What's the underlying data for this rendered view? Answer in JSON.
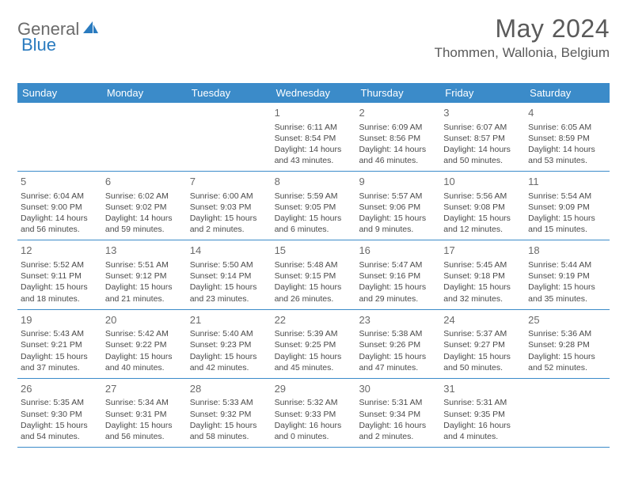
{
  "brand": {
    "part1": "General",
    "part2": "Blue"
  },
  "title": "May 2024",
  "location": "Thommen, Wallonia, Belgium",
  "colors": {
    "header_bg": "#3b8bc9",
    "header_text": "#ffffff",
    "row_border": "#3b8bc9",
    "body_text": "#4a4a4a",
    "title_text": "#5a5a5a",
    "logo_gray": "#6b6b6b",
    "logo_blue": "#2a7bbf",
    "background": "#ffffff"
  },
  "weekdays": [
    "Sunday",
    "Monday",
    "Tuesday",
    "Wednesday",
    "Thursday",
    "Friday",
    "Saturday"
  ],
  "weeks": [
    [
      {
        "n": "",
        "sr": "",
        "ss": "",
        "dl1": "",
        "dl2": ""
      },
      {
        "n": "",
        "sr": "",
        "ss": "",
        "dl1": "",
        "dl2": ""
      },
      {
        "n": "",
        "sr": "",
        "ss": "",
        "dl1": "",
        "dl2": ""
      },
      {
        "n": "1",
        "sr": "Sunrise: 6:11 AM",
        "ss": "Sunset: 8:54 PM",
        "dl1": "Daylight: 14 hours",
        "dl2": "and 43 minutes."
      },
      {
        "n": "2",
        "sr": "Sunrise: 6:09 AM",
        "ss": "Sunset: 8:56 PM",
        "dl1": "Daylight: 14 hours",
        "dl2": "and 46 minutes."
      },
      {
        "n": "3",
        "sr": "Sunrise: 6:07 AM",
        "ss": "Sunset: 8:57 PM",
        "dl1": "Daylight: 14 hours",
        "dl2": "and 50 minutes."
      },
      {
        "n": "4",
        "sr": "Sunrise: 6:05 AM",
        "ss": "Sunset: 8:59 PM",
        "dl1": "Daylight: 14 hours",
        "dl2": "and 53 minutes."
      }
    ],
    [
      {
        "n": "5",
        "sr": "Sunrise: 6:04 AM",
        "ss": "Sunset: 9:00 PM",
        "dl1": "Daylight: 14 hours",
        "dl2": "and 56 minutes."
      },
      {
        "n": "6",
        "sr": "Sunrise: 6:02 AM",
        "ss": "Sunset: 9:02 PM",
        "dl1": "Daylight: 14 hours",
        "dl2": "and 59 minutes."
      },
      {
        "n": "7",
        "sr": "Sunrise: 6:00 AM",
        "ss": "Sunset: 9:03 PM",
        "dl1": "Daylight: 15 hours",
        "dl2": "and 2 minutes."
      },
      {
        "n": "8",
        "sr": "Sunrise: 5:59 AM",
        "ss": "Sunset: 9:05 PM",
        "dl1": "Daylight: 15 hours",
        "dl2": "and 6 minutes."
      },
      {
        "n": "9",
        "sr": "Sunrise: 5:57 AM",
        "ss": "Sunset: 9:06 PM",
        "dl1": "Daylight: 15 hours",
        "dl2": "and 9 minutes."
      },
      {
        "n": "10",
        "sr": "Sunrise: 5:56 AM",
        "ss": "Sunset: 9:08 PM",
        "dl1": "Daylight: 15 hours",
        "dl2": "and 12 minutes."
      },
      {
        "n": "11",
        "sr": "Sunrise: 5:54 AM",
        "ss": "Sunset: 9:09 PM",
        "dl1": "Daylight: 15 hours",
        "dl2": "and 15 minutes."
      }
    ],
    [
      {
        "n": "12",
        "sr": "Sunrise: 5:52 AM",
        "ss": "Sunset: 9:11 PM",
        "dl1": "Daylight: 15 hours",
        "dl2": "and 18 minutes."
      },
      {
        "n": "13",
        "sr": "Sunrise: 5:51 AM",
        "ss": "Sunset: 9:12 PM",
        "dl1": "Daylight: 15 hours",
        "dl2": "and 21 minutes."
      },
      {
        "n": "14",
        "sr": "Sunrise: 5:50 AM",
        "ss": "Sunset: 9:14 PM",
        "dl1": "Daylight: 15 hours",
        "dl2": "and 23 minutes."
      },
      {
        "n": "15",
        "sr": "Sunrise: 5:48 AM",
        "ss": "Sunset: 9:15 PM",
        "dl1": "Daylight: 15 hours",
        "dl2": "and 26 minutes."
      },
      {
        "n": "16",
        "sr": "Sunrise: 5:47 AM",
        "ss": "Sunset: 9:16 PM",
        "dl1": "Daylight: 15 hours",
        "dl2": "and 29 minutes."
      },
      {
        "n": "17",
        "sr": "Sunrise: 5:45 AM",
        "ss": "Sunset: 9:18 PM",
        "dl1": "Daylight: 15 hours",
        "dl2": "and 32 minutes."
      },
      {
        "n": "18",
        "sr": "Sunrise: 5:44 AM",
        "ss": "Sunset: 9:19 PM",
        "dl1": "Daylight: 15 hours",
        "dl2": "and 35 minutes."
      }
    ],
    [
      {
        "n": "19",
        "sr": "Sunrise: 5:43 AM",
        "ss": "Sunset: 9:21 PM",
        "dl1": "Daylight: 15 hours",
        "dl2": "and 37 minutes."
      },
      {
        "n": "20",
        "sr": "Sunrise: 5:42 AM",
        "ss": "Sunset: 9:22 PM",
        "dl1": "Daylight: 15 hours",
        "dl2": "and 40 minutes."
      },
      {
        "n": "21",
        "sr": "Sunrise: 5:40 AM",
        "ss": "Sunset: 9:23 PM",
        "dl1": "Daylight: 15 hours",
        "dl2": "and 42 minutes."
      },
      {
        "n": "22",
        "sr": "Sunrise: 5:39 AM",
        "ss": "Sunset: 9:25 PM",
        "dl1": "Daylight: 15 hours",
        "dl2": "and 45 minutes."
      },
      {
        "n": "23",
        "sr": "Sunrise: 5:38 AM",
        "ss": "Sunset: 9:26 PM",
        "dl1": "Daylight: 15 hours",
        "dl2": "and 47 minutes."
      },
      {
        "n": "24",
        "sr": "Sunrise: 5:37 AM",
        "ss": "Sunset: 9:27 PM",
        "dl1": "Daylight: 15 hours",
        "dl2": "and 50 minutes."
      },
      {
        "n": "25",
        "sr": "Sunrise: 5:36 AM",
        "ss": "Sunset: 9:28 PM",
        "dl1": "Daylight: 15 hours",
        "dl2": "and 52 minutes."
      }
    ],
    [
      {
        "n": "26",
        "sr": "Sunrise: 5:35 AM",
        "ss": "Sunset: 9:30 PM",
        "dl1": "Daylight: 15 hours",
        "dl2": "and 54 minutes."
      },
      {
        "n": "27",
        "sr": "Sunrise: 5:34 AM",
        "ss": "Sunset: 9:31 PM",
        "dl1": "Daylight: 15 hours",
        "dl2": "and 56 minutes."
      },
      {
        "n": "28",
        "sr": "Sunrise: 5:33 AM",
        "ss": "Sunset: 9:32 PM",
        "dl1": "Daylight: 15 hours",
        "dl2": "and 58 minutes."
      },
      {
        "n": "29",
        "sr": "Sunrise: 5:32 AM",
        "ss": "Sunset: 9:33 PM",
        "dl1": "Daylight: 16 hours",
        "dl2": "and 0 minutes."
      },
      {
        "n": "30",
        "sr": "Sunrise: 5:31 AM",
        "ss": "Sunset: 9:34 PM",
        "dl1": "Daylight: 16 hours",
        "dl2": "and 2 minutes."
      },
      {
        "n": "31",
        "sr": "Sunrise: 5:31 AM",
        "ss": "Sunset: 9:35 PM",
        "dl1": "Daylight: 16 hours",
        "dl2": "and 4 minutes."
      },
      {
        "n": "",
        "sr": "",
        "ss": "",
        "dl1": "",
        "dl2": ""
      }
    ]
  ]
}
